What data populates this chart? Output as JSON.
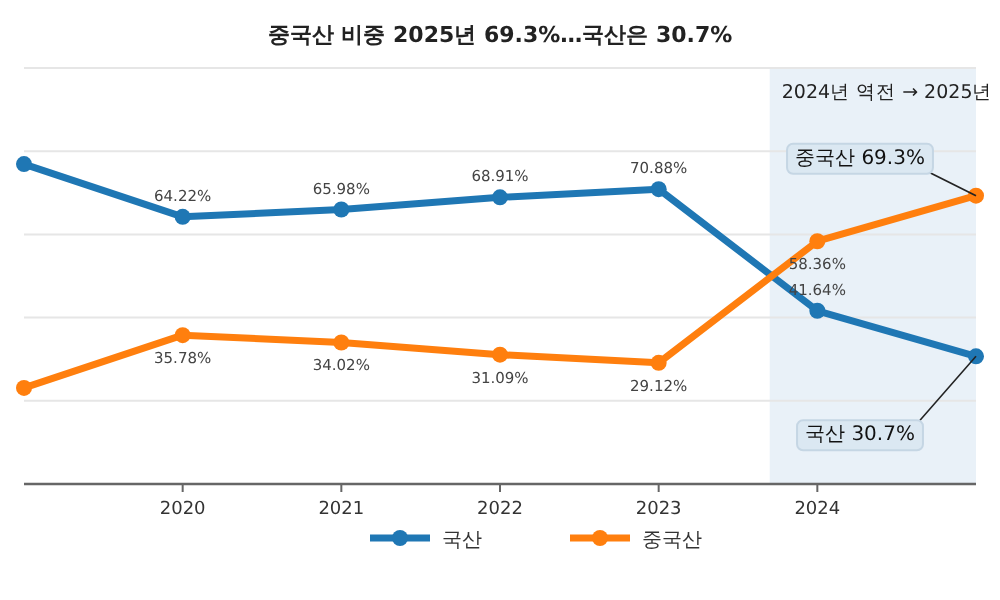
{
  "chart_data": {
    "type": "line",
    "title": "중국산 비중 2025년 69.3%…국산은 30.7%",
    "x": [
      2019,
      2020,
      2021,
      2022,
      2023,
      2024,
      2025
    ],
    "series": [
      {
        "name": "국산",
        "color": "#1f77b4",
        "values": [
          76.9,
          64.22,
          65.98,
          68.91,
          70.88,
          41.64,
          30.7
        ],
        "value_labels": [
          null,
          "64.22%",
          "65.98%",
          "68.91%",
          "70.88%",
          "41.64%",
          null
        ]
      },
      {
        "name": "중국산",
        "color": "#ff7f0e",
        "values": [
          23.1,
          35.78,
          34.02,
          31.09,
          29.12,
          58.36,
          69.3
        ],
        "value_labels": [
          null,
          "35.78%",
          "34.02%",
          "31.09%",
          "29.12%",
          "58.36%",
          null
        ]
      }
    ],
    "xlim": [
      2019,
      2025
    ],
    "xticks": [
      2020,
      2021,
      2022,
      2023,
      2024
    ],
    "ylim": [
      0,
      100
    ],
    "yticks": [
      {
        "value": 0,
        "label": null
      },
      {
        "value": 20,
        "label": null
      },
      {
        "value": 40,
        "label": null
      },
      {
        "value": 60,
        "label": null
      },
      {
        "value": 80,
        "label": null
      },
      {
        "value": 100,
        "label": null
      }
    ],
    "tick_labels": "x",
    "grid": "y",
    "legend": "bottom",
    "marker": "circle",
    "line_style": "solid",
    "bands": [
      {
        "axis": "x",
        "from": 2023.7,
        "to": 2025,
        "label": "2024년 역전 → 2025년",
        "color": "#e9f1f8"
      }
    ],
    "annotations": [
      {
        "text": "중국산 69.3%",
        "x": 2025,
        "y": 69.3
      },
      {
        "text": "국산 30.7%",
        "x": 2025,
        "y": 30.7
      }
    ]
  }
}
